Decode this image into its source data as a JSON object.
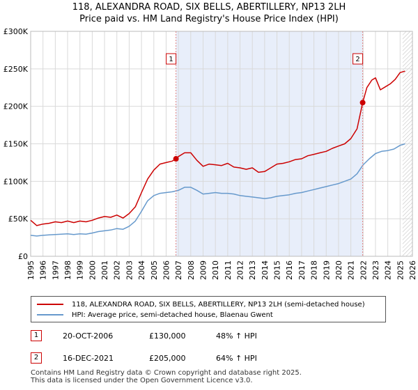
{
  "title": {
    "line1": "118, ALEXANDRA ROAD, SIX BELLS, ABERTILLERY, NP13 2LH",
    "line2": "Price paid vs. HM Land Registry's House Price Index (HPI)"
  },
  "colors": {
    "property": "#cc0000",
    "hpi": "#6699cc",
    "shade": "#e8eefa",
    "grid": "#d9d9d9",
    "marker_line": "#e08080"
  },
  "chart_data": {
    "type": "line",
    "title": "Price paid vs. HM Land Registry's House Price Index (HPI)",
    "xlabel": "",
    "ylabel": "",
    "xlim": [
      1995,
      2026
    ],
    "ylim": [
      0,
      300000
    ],
    "y_ticks": [
      0,
      50000,
      100000,
      150000,
      200000,
      250000,
      300000
    ],
    "y_tick_labels": [
      "£0",
      "£50K",
      "£100K",
      "£150K",
      "£200K",
      "£250K",
      "£300K"
    ],
    "x_ticks": [
      1995,
      1996,
      1997,
      1998,
      1999,
      2000,
      2001,
      2002,
      2003,
      2004,
      2005,
      2006,
      2007,
      2008,
      2009,
      2010,
      2011,
      2012,
      2013,
      2014,
      2015,
      2016,
      2017,
      2018,
      2019,
      2020,
      2021,
      2022,
      2023,
      2024,
      2025,
      2026
    ],
    "shaded_region": [
      2006.8,
      2021.96
    ],
    "hatched_from": 2025.2,
    "series": [
      {
        "name": "118, ALEXANDRA ROAD, SIX BELLS, ABERTILLERY, NP13 2LH (semi-detached house)",
        "x": [
          1995.0,
          1995.5,
          1996.0,
          1996.5,
          1997.0,
          1997.5,
          1998.0,
          1998.5,
          1999.0,
          1999.5,
          2000.0,
          2000.5,
          2001.0,
          2001.5,
          2002.0,
          2002.5,
          2003.0,
          2003.5,
          2004.0,
          2004.5,
          2005.0,
          2005.5,
          2006.0,
          2006.5,
          2006.8,
          2007.0,
          2007.5,
          2008.0,
          2008.5,
          2009.0,
          2009.5,
          2010.0,
          2010.5,
          2011.0,
          2011.5,
          2012.0,
          2012.5,
          2013.0,
          2013.5,
          2014.0,
          2014.5,
          2015.0,
          2015.5,
          2016.0,
          2016.5,
          2017.0,
          2017.5,
          2018.0,
          2018.5,
          2019.0,
          2019.5,
          2020.0,
          2020.5,
          2021.0,
          2021.5,
          2021.96,
          2022.3,
          2022.7,
          2023.0,
          2023.4,
          2023.8,
          2024.2,
          2024.6,
          2025.0,
          2025.4
        ],
        "values": [
          48000,
          41000,
          43000,
          44000,
          46000,
          45000,
          47000,
          45000,
          47000,
          46000,
          48000,
          51000,
          53000,
          52000,
          55000,
          51000,
          57000,
          66000,
          85000,
          103000,
          115000,
          123000,
          125000,
          127000,
          130000,
          133000,
          138000,
          138000,
          128000,
          120000,
          123000,
          122000,
          121000,
          124000,
          119000,
          118000,
          116000,
          118000,
          112000,
          113000,
          118000,
          123000,
          124000,
          126000,
          129000,
          130000,
          134000,
          136000,
          138000,
          140000,
          144000,
          147000,
          150000,
          157000,
          170000,
          205000,
          225000,
          235000,
          238000,
          222000,
          226000,
          230000,
          236000,
          245000,
          247000
        ]
      },
      {
        "name": "HPI: Average price, semi-detached house, Blaenau Gwent",
        "x": [
          1995.0,
          1995.5,
          1996.0,
          1996.5,
          1997.0,
          1997.5,
          1998.0,
          1998.5,
          1999.0,
          1999.5,
          2000.0,
          2000.5,
          2001.0,
          2001.5,
          2002.0,
          2002.5,
          2003.0,
          2003.5,
          2004.0,
          2004.5,
          2005.0,
          2005.5,
          2006.0,
          2006.5,
          2007.0,
          2007.5,
          2008.0,
          2008.5,
          2009.0,
          2009.5,
          2010.0,
          2010.5,
          2011.0,
          2011.5,
          2012.0,
          2012.5,
          2013.0,
          2013.5,
          2014.0,
          2014.5,
          2015.0,
          2015.5,
          2016.0,
          2016.5,
          2017.0,
          2017.5,
          2018.0,
          2018.5,
          2019.0,
          2019.5,
          2020.0,
          2020.5,
          2021.0,
          2021.5,
          2022.0,
          2022.5,
          2023.0,
          2023.5,
          2024.0,
          2024.5,
          2025.0,
          2025.4
        ],
        "values": [
          28000,
          27000,
          28000,
          28500,
          29000,
          29500,
          30000,
          29000,
          30000,
          29500,
          31000,
          33000,
          34000,
          35000,
          37000,
          36000,
          40000,
          47000,
          60000,
          74000,
          81000,
          84000,
          85000,
          86000,
          88000,
          92000,
          92000,
          88000,
          83000,
          84000,
          85000,
          84000,
          84000,
          83000,
          81000,
          80000,
          79000,
          78000,
          77000,
          78000,
          80000,
          81000,
          82000,
          84000,
          85000,
          87000,
          89000,
          91000,
          93000,
          95000,
          97000,
          100000,
          103000,
          110000,
          122000,
          130000,
          137000,
          140000,
          141000,
          143000,
          148000,
          150000
        ]
      }
    ],
    "markers": [
      {
        "label": "1",
        "x": 2006.8,
        "y": 130000
      },
      {
        "label": "2",
        "x": 2021.96,
        "y": 205000
      }
    ]
  },
  "legend": {
    "property_label": "118, ALEXANDRA ROAD, SIX BELLS, ABERTILLERY, NP13 2LH (semi-detached house)",
    "hpi_label": "HPI: Average price, semi-detached house, Blaenau Gwent"
  },
  "sales": [
    {
      "num": "1",
      "date": "20-OCT-2006",
      "price": "£130,000",
      "hpi": "48% ↑ HPI"
    },
    {
      "num": "2",
      "date": "16-DEC-2021",
      "price": "£205,000",
      "hpi": "64% ↑ HPI"
    }
  ],
  "footer": {
    "line1": "Contains HM Land Registry data © Crown copyright and database right 2025.",
    "line2": "This data is licensed under the Open Government Licence v3.0."
  }
}
